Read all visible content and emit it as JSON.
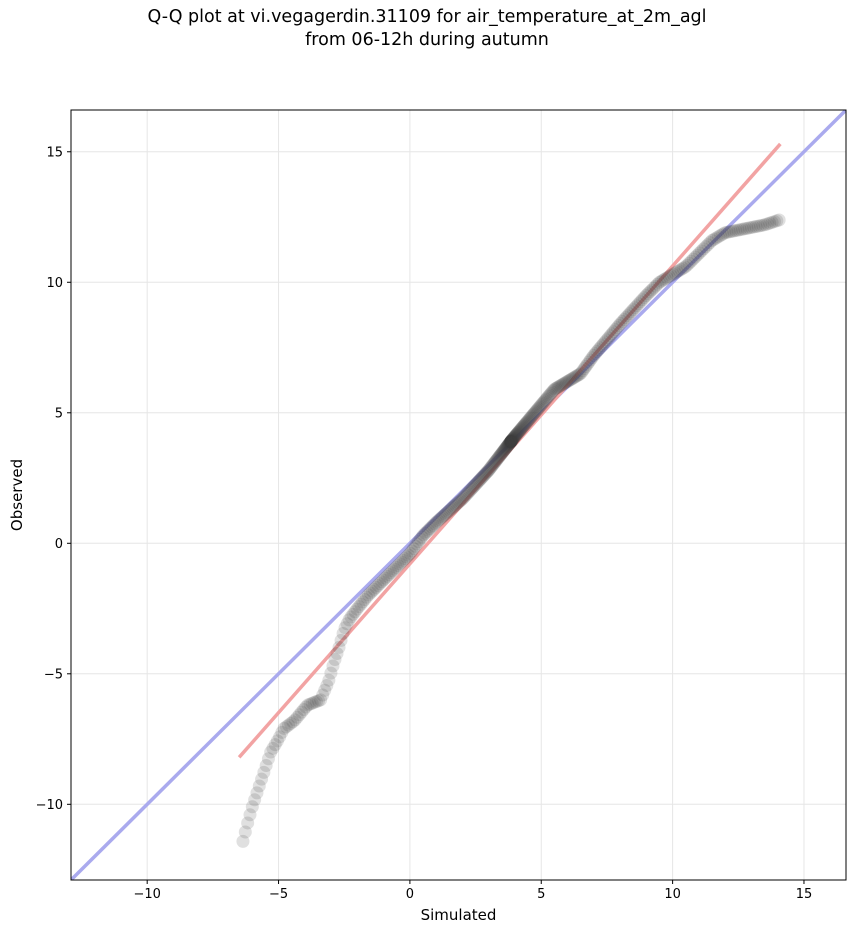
{
  "title_line1": "Q-Q plot at vi.vegagerdin.31109 for air_temperature_at_2m_agl",
  "title_line2": "from 06-12h during autumn",
  "chart_data": {
    "type": "scatter",
    "xlabel": "Simulated",
    "ylabel": "Observed",
    "xlim": [
      -12.9,
      16.6
    ],
    "ylim": [
      -12.9,
      16.6
    ],
    "xticks": [
      -10,
      -5,
      0,
      5,
      10,
      15
    ],
    "yticks": [
      -10,
      -5,
      0,
      5,
      10,
      15
    ],
    "xtick_labels": [
      "−10",
      "−5",
      "0",
      "5",
      "10",
      "15"
    ],
    "ytick_labels": [
      "−10",
      "−5",
      "0",
      "5",
      "10",
      "15"
    ],
    "grid": true,
    "lines": [
      {
        "kind": "identity (y = x)",
        "color": "#aaaaee",
        "x": [
          -12.9,
          16.6
        ],
        "y": [
          -12.9,
          16.6
        ]
      },
      {
        "kind": "fit",
        "color": "#f2a3a3",
        "x": [
          -6.5,
          14.1
        ],
        "y": [
          -8.2,
          15.3
        ]
      }
    ],
    "point_color": "#3c3c3c",
    "qq_path_x": [
      -6.4,
      -6.2,
      -6.0,
      -5.8,
      -5.6,
      -5.3,
      -5.0,
      -4.8,
      -4.4,
      -3.9,
      -3.4,
      -3.1,
      -2.9,
      -2.7,
      -2.5,
      -2.3,
      -2.0,
      -1.6,
      -1.2,
      -0.8,
      -0.5,
      0.0,
      0.5,
      1.0,
      2.0,
      3.0,
      4.0,
      5.0,
      5.5,
      6.5,
      7.0,
      8.0,
      9.0,
      9.5,
      10.0,
      10.5,
      11.0,
      11.5,
      12.0,
      12.5,
      13.0,
      13.5,
      14.1
    ],
    "qq_path_y": [
      -11.6,
      -10.8,
      -10.1,
      -9.5,
      -8.9,
      -8.0,
      -7.5,
      -7.1,
      -6.8,
      -6.2,
      -6.0,
      -5.3,
      -4.6,
      -4.0,
      -3.3,
      -2.9,
      -2.5,
      -2.0,
      -1.6,
      -1.2,
      -0.9,
      -0.4,
      0.3,
      0.8,
      1.7,
      2.8,
      4.1,
      5.3,
      5.9,
      6.5,
      7.2,
      8.4,
      9.5,
      10.0,
      10.3,
      10.6,
      11.1,
      11.6,
      11.9,
      12.0,
      12.1,
      12.2,
      12.4
    ],
    "n_points": 360
  }
}
